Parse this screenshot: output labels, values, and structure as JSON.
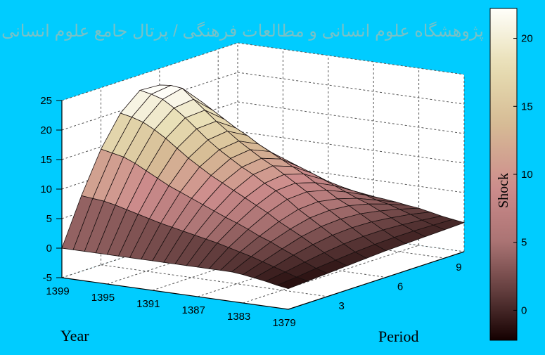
{
  "chart_data": {
    "type": "surface",
    "z_axis": {
      "ticks": [
        -5,
        0,
        5,
        10,
        15,
        20,
        25
      ],
      "range": [
        -5,
        25
      ]
    },
    "year_axis": {
      "label": "Year",
      "ticks": [
        "1399",
        "1395",
        "1391",
        "1387",
        "1383",
        "1379"
      ],
      "range": [
        1379,
        1399
      ]
    },
    "period_axis": {
      "label": "Period",
      "ticks": [
        "3",
        "6",
        "9"
      ],
      "range": [
        1,
        10
      ]
    },
    "colorbar": {
      "label": "Shock",
      "ticks": [
        0,
        5,
        10,
        15,
        20
      ],
      "range": [
        -2.2,
        22.2
      ]
    },
    "grid": true,
    "watermark": "پژوهشگاه علوم انسانی و مطالعات فرهنگی / پرتال جامع علوم انسانی",
    "colors": {
      "background": "#00ccff",
      "panel": "#ffffff",
      "edges": "#111111"
    },
    "series": [
      {
        "year": 1379,
        "values": [
          -1.5,
          -1.3,
          -1.1,
          -0.9,
          -0.7,
          -0.5,
          -0.4,
          -0.3,
          -0.2,
          -0.1
        ]
      },
      {
        "year": 1380,
        "values": [
          -1.2,
          -0.9,
          -0.5,
          -0.2,
          0.1,
          0.3,
          0.4,
          0.4,
          0.3,
          0.2
        ]
      },
      {
        "year": 1381,
        "values": [
          -0.8,
          -0.3,
          0.3,
          0.8,
          1.2,
          1.4,
          1.4,
          1.2,
          0.9,
          0.5
        ]
      },
      {
        "year": 1382,
        "values": [
          -0.5,
          0.3,
          1.2,
          1.9,
          2.4,
          2.6,
          2.5,
          2.1,
          1.6,
          0.9
        ]
      },
      {
        "year": 1383,
        "values": [
          -0.2,
          0.9,
          2.0,
          3.0,
          3.6,
          3.8,
          3.6,
          3.0,
          2.2,
          1.3
        ]
      },
      {
        "year": 1384,
        "values": [
          0.0,
          1.5,
          2.9,
          4.0,
          4.8,
          5.0,
          4.7,
          3.9,
          2.8,
          1.5
        ]
      },
      {
        "year": 1385,
        "values": [
          0.0,
          2.0,
          3.6,
          5.0,
          6.0,
          6.2,
          5.6,
          4.6,
          3.2,
          1.8
        ]
      },
      {
        "year": 1386,
        "values": [
          0.0,
          2.5,
          4.5,
          6.2,
          7.4,
          7.6,
          6.8,
          5.4,
          3.8,
          2.0
        ]
      },
      {
        "year": 1387,
        "values": [
          0.0,
          3.0,
          5.3,
          7.2,
          8.6,
          8.8,
          7.8,
          6.2,
          4.2,
          2.2
        ]
      },
      {
        "year": 1388,
        "values": [
          0.0,
          3.4,
          6.0,
          8.2,
          9.6,
          10.0,
          9.0,
          7.0,
          4.6,
          2.3
        ]
      },
      {
        "year": 1389,
        "values": [
          0.0,
          3.8,
          6.8,
          9.2,
          10.8,
          11.2,
          10.0,
          7.8,
          5.0,
          2.5
        ]
      },
      {
        "year": 1390,
        "values": [
          0.0,
          4.2,
          7.6,
          10.2,
          11.8,
          12.2,
          11.0,
          8.5,
          5.4,
          2.6
        ]
      },
      {
        "year": 1391,
        "values": [
          0.0,
          4.6,
          8.4,
          11.2,
          13.0,
          13.4,
          12.0,
          9.2,
          5.8,
          2.7
        ]
      },
      {
        "year": 1392,
        "values": [
          0.0,
          5.0,
          9.2,
          12.4,
          14.2,
          14.6,
          13.0,
          9.8,
          6.2,
          2.8
        ]
      },
      {
        "year": 1393,
        "values": [
          0.0,
          5.5,
          10.0,
          13.6,
          15.6,
          16.0,
          14.2,
          10.6,
          6.6,
          2.9
        ]
      },
      {
        "year": 1394,
        "values": [
          0.0,
          6.0,
          11.0,
          15.0,
          17.2,
          17.4,
          15.2,
          11.2,
          6.8,
          3.0
        ]
      },
      {
        "year": 1395,
        "values": [
          0.0,
          6.5,
          12.0,
          16.4,
          18.8,
          19.0,
          16.4,
          12.0,
          7.2,
          3.0
        ]
      },
      {
        "year": 1396,
        "values": [
          0.0,
          7.0,
          13.0,
          17.6,
          20.2,
          20.6,
          17.6,
          12.6,
          7.4,
          3.1
        ]
      },
      {
        "year": 1397,
        "values": [
          0.0,
          7.4,
          13.8,
          18.6,
          21.4,
          22.2,
          18.8,
          13.4,
          7.8,
          3.2
        ]
      },
      {
        "year": 1398,
        "values": [
          0.0,
          7.6,
          14.2,
          19.2,
          22.0,
          22.4,
          19.2,
          13.8,
          8.0,
          3.3
        ]
      },
      {
        "year": 1399,
        "values": [
          0.0,
          7.8,
          14.6,
          19.6,
          22.4,
          22.2,
          19.4,
          14.0,
          8.2,
          3.4
        ]
      }
    ]
  }
}
